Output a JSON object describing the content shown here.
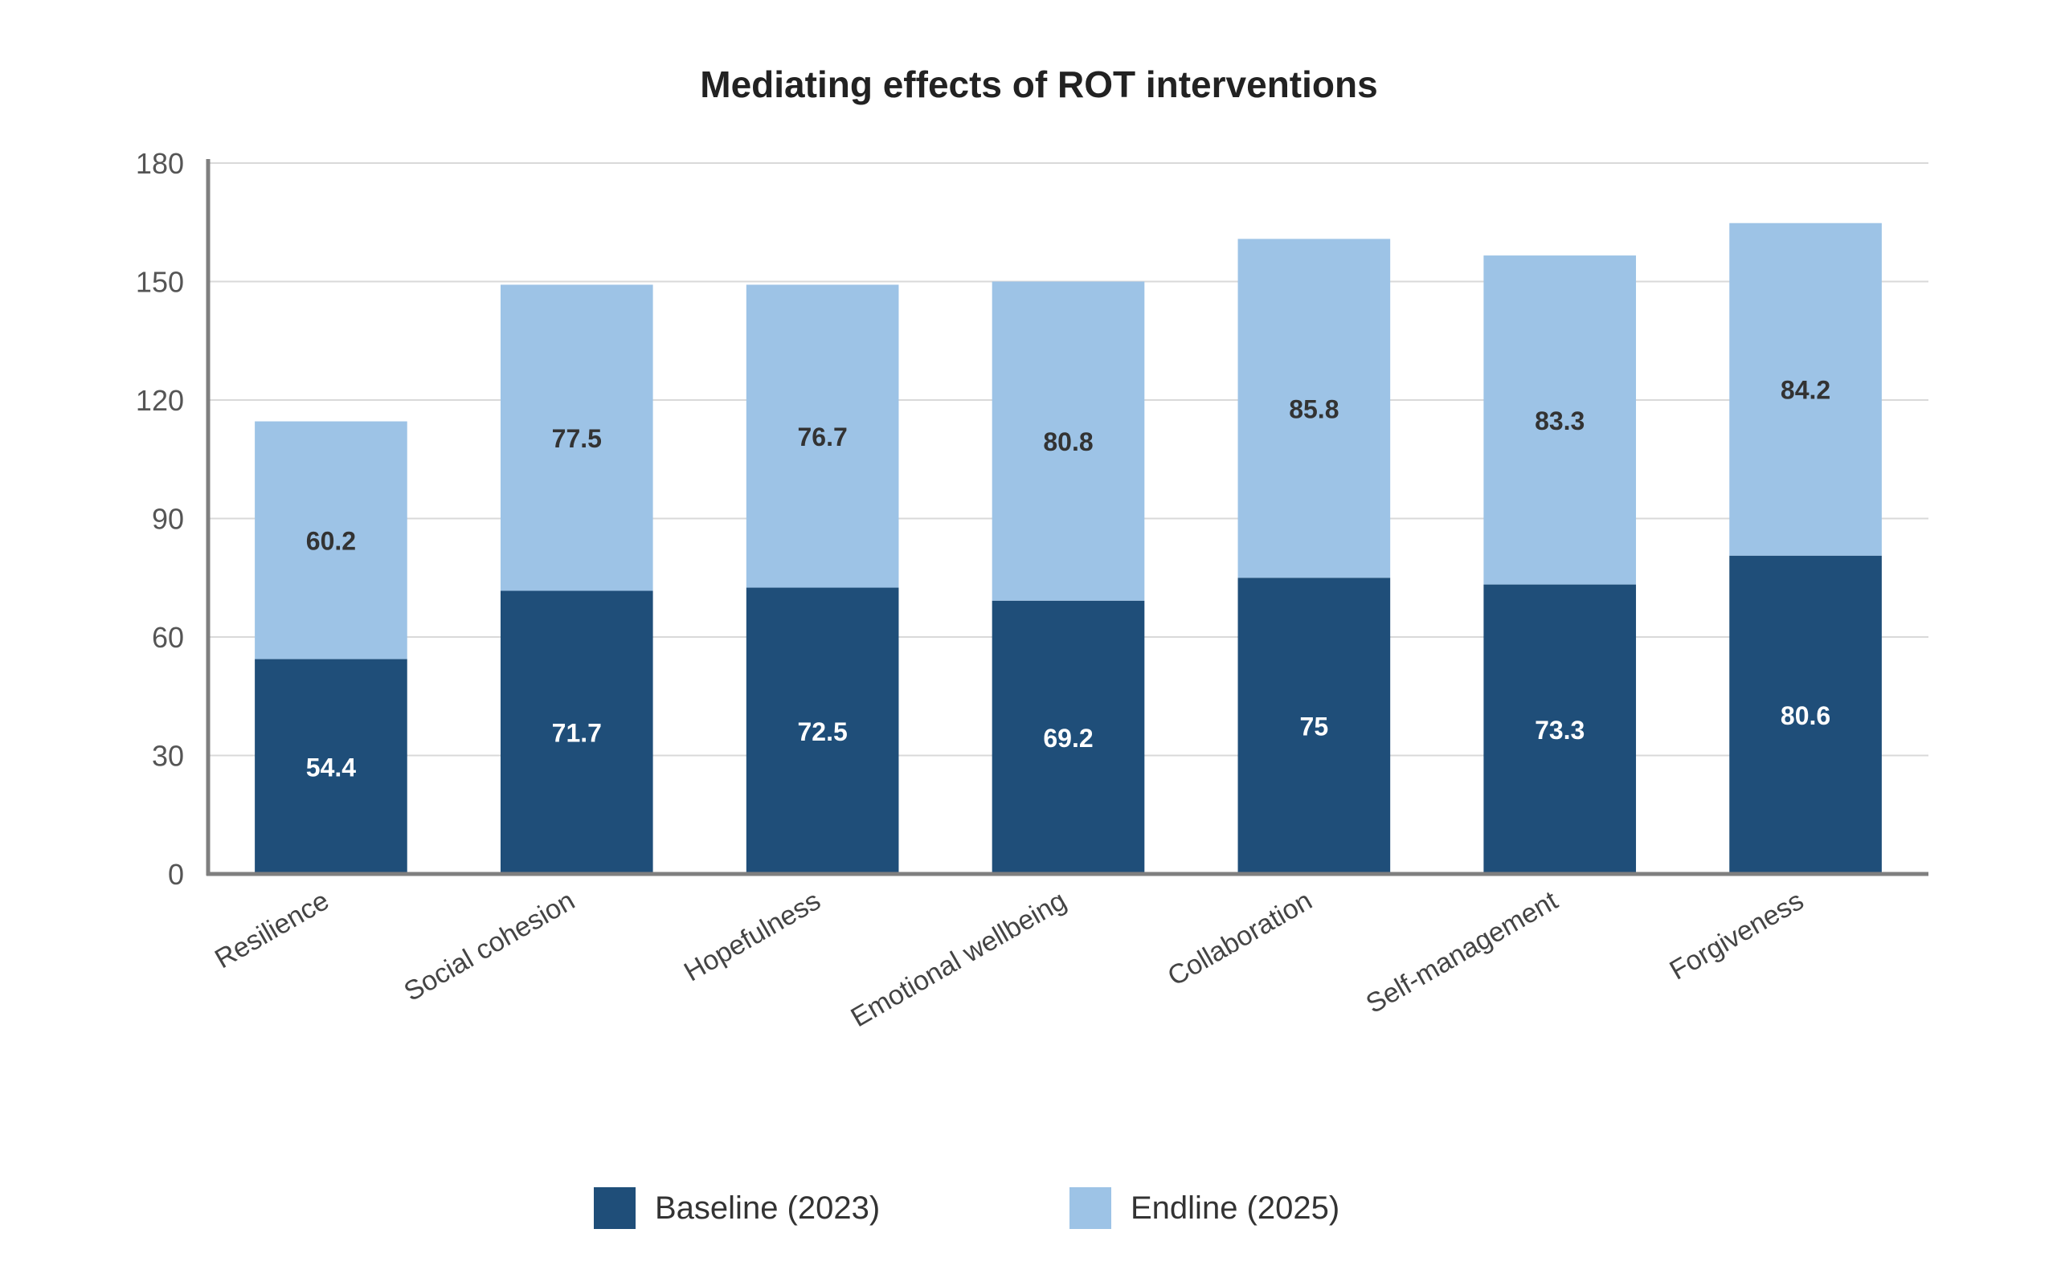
{
  "chart_data": {
    "type": "bar",
    "stacked": true,
    "title": "Mediating effects of ROT interventions",
    "xlabel": "",
    "ylabel": "",
    "ylim": [
      0,
      180
    ],
    "yticks": [
      0,
      30,
      60,
      90,
      120,
      150,
      180
    ],
    "grid": true,
    "legend_placement": "bottom",
    "categories": [
      "Resilience",
      "Social cohesion",
      "Hopefulness",
      "Emotional wellbeing",
      "Collaboration",
      "Self-management",
      "Forgiveness"
    ],
    "series": [
      {
        "name": "Baseline (2023)",
        "color": "#1f4e79",
        "label_color": "#ffffff",
        "values": [
          54.4,
          71.7,
          72.5,
          69.2,
          75,
          73.3,
          80.6
        ]
      },
      {
        "name": "Endline (2025)",
        "color": "#9dc3e6",
        "label_color": "#333333",
        "values": [
          60.2,
          77.5,
          76.7,
          80.8,
          85.8,
          83.3,
          84.2
        ]
      }
    ]
  }
}
